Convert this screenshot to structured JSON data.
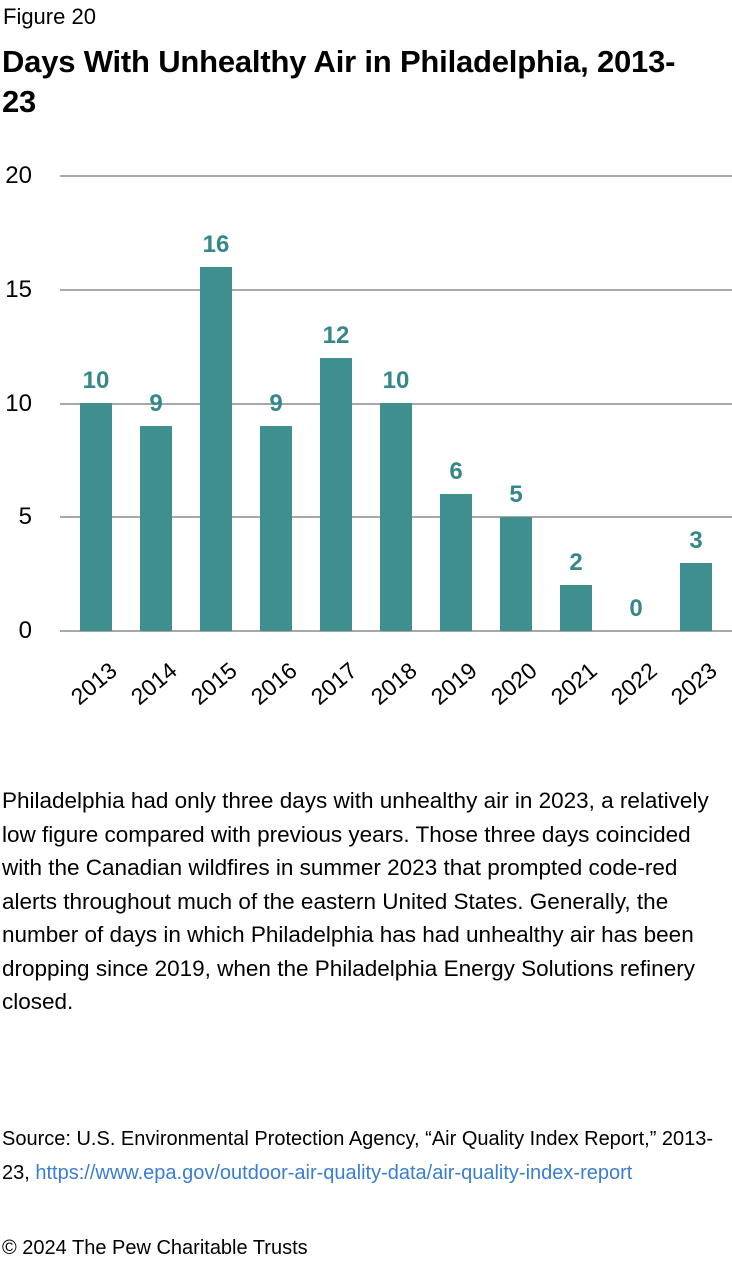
{
  "figure_label": "Figure 20",
  "title": "Days With Unhealthy Air in Philadelphia, 2013-23",
  "chart_data": {
    "type": "bar",
    "title": "Days With Unhealthy Air in Philadelphia, 2013-23",
    "categories": [
      "2013",
      "2014",
      "2015",
      "2016",
      "2017",
      "2018",
      "2019",
      "2020",
      "2021",
      "2022",
      "2023"
    ],
    "values": [
      10,
      9,
      16,
      9,
      12,
      10,
      6,
      5,
      2,
      0,
      3
    ],
    "xlabel": "",
    "ylabel": "",
    "ylim": [
      0,
      20
    ],
    "yticks": [
      0,
      5,
      10,
      15,
      20
    ],
    "grid": true,
    "legend": "none",
    "bar_color": "#3E8F8D",
    "value_label_color": "#35888A",
    "grid_color": "#A8A8A8",
    "axis_text_color": "#000000"
  },
  "body_text": "Philadelphia had only three days with unhealthy air in 2023, a relatively low figure compared with previous years. Those three days coincided with the Canadian wildfires in summer 2023 that prompted code-red alerts throughout much of the eastern United States. Generally, the number of days in which Philadelphia has had unhealthy air has been dropping since 2019, when the Philadelphia Energy Solutions refinery closed.",
  "source": {
    "text_before_link": "Source: U.S. Environmental Protection Agency, “Air Quality Index Report,” 2013-23, ",
    "link_text": "https://www.epa.gov/outdoor-air-quality-data/air-quality-index-report",
    "link_color": "#3A7DD1"
  },
  "copyright": "© 2024 The Pew Charitable Trusts"
}
